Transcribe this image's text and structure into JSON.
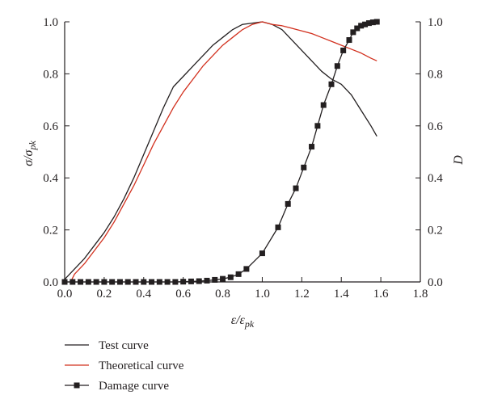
{
  "chart_data": {
    "type": "line",
    "xlabel": {
      "main": "ε/ε",
      "sub": "pk"
    },
    "ylabel_left": {
      "main": "σ/σ",
      "sub": "pk"
    },
    "ylabel_right": "D",
    "xlim": [
      0,
      1.8
    ],
    "ylim_left": [
      0,
      1.0
    ],
    "ylim_right": [
      0,
      1.0
    ],
    "x_ticks": [
      "0.0",
      "0.2",
      "0.4",
      "0.6",
      "0.8",
      "1.0",
      "1.2",
      "1.4",
      "1.6",
      "1.8"
    ],
    "y_ticks_left": [
      "0.0",
      "0.2",
      "0.4",
      "0.6",
      "0.8",
      "1.0"
    ],
    "y_ticks_right": [
      "0.0",
      "0.2",
      "0.4",
      "0.6",
      "0.8",
      "1.0"
    ],
    "grid": false,
    "legend_position": "bottom-left",
    "series": [
      {
        "name": "Test curve",
        "color": "#231f20",
        "axis": "left",
        "marker": "none",
        "x": [
          0,
          0.05,
          0.1,
          0.15,
          0.2,
          0.25,
          0.3,
          0.35,
          0.4,
          0.45,
          0.5,
          0.55,
          0.6,
          0.65,
          0.7,
          0.75,
          0.8,
          0.85,
          0.9,
          0.95,
          1.0,
          1.05,
          1.1,
          1.15,
          1.2,
          1.25,
          1.3,
          1.35,
          1.4,
          1.45,
          1.5,
          1.55,
          1.58
        ],
        "y": [
          0.01,
          0.05,
          0.09,
          0.14,
          0.19,
          0.25,
          0.32,
          0.4,
          0.49,
          0.58,
          0.67,
          0.75,
          0.79,
          0.83,
          0.87,
          0.91,
          0.94,
          0.97,
          0.99,
          0.995,
          1.0,
          0.99,
          0.97,
          0.93,
          0.89,
          0.85,
          0.81,
          0.78,
          0.76,
          0.72,
          0.66,
          0.6,
          0.56
        ]
      },
      {
        "name": "Theoretical curve",
        "color": "#d2301e",
        "axis": "left",
        "marker": "none",
        "x": [
          0.03,
          0.05,
          0.1,
          0.15,
          0.2,
          0.25,
          0.3,
          0.35,
          0.4,
          0.45,
          0.5,
          0.55,
          0.6,
          0.65,
          0.7,
          0.75,
          0.8,
          0.85,
          0.9,
          0.95,
          1.0,
          1.05,
          1.1,
          1.15,
          1.2,
          1.25,
          1.3,
          1.35,
          1.4,
          1.45,
          1.5,
          1.55,
          1.58
        ],
        "y": [
          0.0,
          0.03,
          0.07,
          0.12,
          0.17,
          0.23,
          0.3,
          0.37,
          0.45,
          0.53,
          0.6,
          0.67,
          0.73,
          0.78,
          0.83,
          0.87,
          0.91,
          0.94,
          0.97,
          0.99,
          1.0,
          0.99,
          0.985,
          0.975,
          0.965,
          0.955,
          0.94,
          0.925,
          0.91,
          0.895,
          0.88,
          0.86,
          0.85
        ]
      },
      {
        "name": "Damage curve",
        "color": "#231f20",
        "axis": "right",
        "marker": "square",
        "x": [
          0,
          0.04,
          0.08,
          0.12,
          0.16,
          0.2,
          0.24,
          0.28,
          0.32,
          0.36,
          0.4,
          0.44,
          0.48,
          0.52,
          0.56,
          0.6,
          0.64,
          0.68,
          0.72,
          0.76,
          0.8,
          0.84,
          0.88,
          0.92,
          1.0,
          1.08,
          1.13,
          1.17,
          1.21,
          1.25,
          1.28,
          1.31,
          1.35,
          1.38,
          1.41,
          1.44,
          1.46,
          1.48,
          1.5,
          1.52,
          1.54,
          1.56,
          1.58
        ],
        "y": [
          0,
          0,
          0,
          0,
          0,
          0,
          0,
          0,
          0,
          0,
          0,
          0,
          0,
          0,
          0,
          0.001,
          0.002,
          0.003,
          0.005,
          0.008,
          0.012,
          0.018,
          0.03,
          0.05,
          0.11,
          0.21,
          0.3,
          0.36,
          0.44,
          0.52,
          0.6,
          0.68,
          0.76,
          0.83,
          0.89,
          0.93,
          0.96,
          0.975,
          0.985,
          0.99,
          0.995,
          0.998,
          1.0
        ]
      }
    ]
  }
}
